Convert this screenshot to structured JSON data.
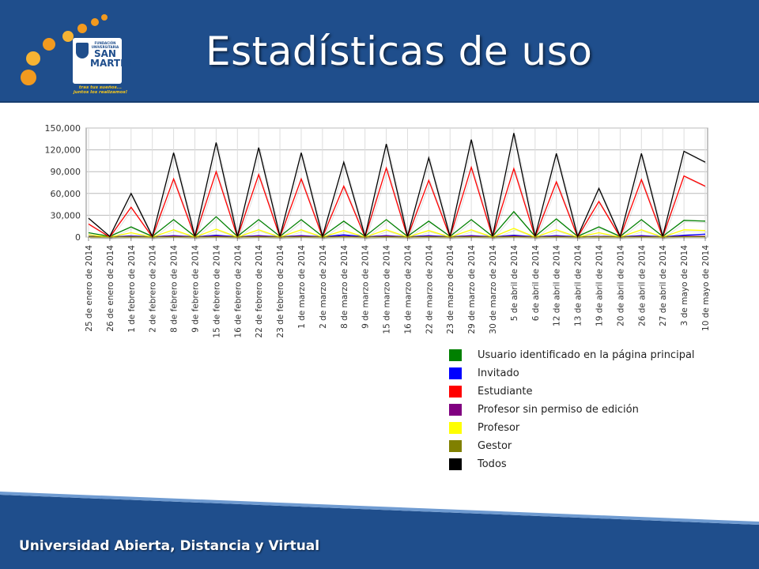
{
  "header": {
    "title": "Estadísticas de uso",
    "logo": {
      "small_text": "FUNDACIÓN UNIVERSITARIA",
      "line1": "SAN",
      "line2": "MARTIN",
      "tagline1": "tras tus sueños...",
      "tagline2": "juntos los realizamos!"
    }
  },
  "footer": {
    "text": "Universidad Abierta, Distancia y Virtual"
  },
  "colors": {
    "header_bg": "#1f4e8c",
    "accent_orange": "#f29a1f"
  },
  "chart_data": {
    "type": "line",
    "categories": [
      "25 de enero de 2014",
      "26 de enero de 2014",
      "1 de febrero de 2014",
      "2 de febrero de 2014",
      "8 de febrero de 2014",
      "9 de febrero de 2014",
      "15 de febrero de 2014",
      "16 de febrero de 2014",
      "22 de febrero de 2014",
      "23 de febrero de 2014",
      "1 de marzo de 2014",
      "2 de marzo de 2014",
      "8 de marzo de 2014",
      "9 de marzo de 2014",
      "15 de marzo de 2014",
      "16 de marzo de 2014",
      "22 de marzo de 2014",
      "23 de marzo de 2014",
      "29 de marzo de 2014",
      "30 de marzo de 2014",
      "5 de abril de 2014",
      "6 de abril de 2014",
      "12 de abril de 2014",
      "13 de abril de 2014",
      "19 de abril de 2014",
      "20 de abril de 2014",
      "26 de abril de 2014",
      "27 de abril de 2014",
      "3 de mayo de 2014",
      "10 de mayo de 2014"
    ],
    "yticks": [
      "0",
      "30,000",
      "60,000",
      "90,000",
      "120,000",
      "150,000"
    ],
    "ylim": [
      0,
      150000
    ],
    "grid": true,
    "legend_position": "bottom-right",
    "series": [
      {
        "name": "Usuario identificado en la página principal",
        "color": "#008000",
        "values": [
          6000,
          1000,
          14000,
          1000,
          24000,
          1000,
          28000,
          1000,
          24000,
          1000,
          24000,
          1000,
          22000,
          1000,
          24000,
          1000,
          22000,
          1000,
          24000,
          1000,
          35000,
          1000,
          25000,
          1000,
          14000,
          1000,
          24000,
          1000,
          23000,
          22000
        ]
      },
      {
        "name": "Invitado",
        "color": "#0000ff",
        "values": [
          1000,
          300,
          1500,
          300,
          2000,
          300,
          2500,
          300,
          2000,
          300,
          2000,
          300,
          3000,
          300,
          2000,
          300,
          2000,
          300,
          2000,
          300,
          2500,
          300,
          2000,
          300,
          1000,
          300,
          2000,
          300,
          2500,
          4000
        ]
      },
      {
        "name": "Estudiante",
        "color": "#ff0000",
        "values": [
          18000,
          0,
          41000,
          0,
          80000,
          0,
          90000,
          0,
          86000,
          0,
          80000,
          0,
          70000,
          0,
          95000,
          0,
          78000,
          0,
          96000,
          0,
          94000,
          0,
          76000,
          0,
          49000,
          0,
          79000,
          0,
          84000,
          70000
        ]
      },
      {
        "name": "Profesor sin permiso de edición",
        "color": "#800080",
        "values": [
          500,
          0,
          1000,
          0,
          1500,
          0,
          1500,
          0,
          1500,
          0,
          1500,
          0,
          1200,
          0,
          1500,
          0,
          1200,
          0,
          1500,
          0,
          1500,
          0,
          1200,
          0,
          800,
          0,
          1200,
          0,
          1200,
          1000
        ]
      },
      {
        "name": "Profesor",
        "color": "#ffff00",
        "values": [
          3000,
          0,
          6000,
          0,
          10000,
          0,
          11000,
          0,
          10000,
          0,
          10000,
          0,
          9000,
          0,
          10000,
          0,
          9000,
          0,
          10000,
          0,
          12000,
          0,
          10000,
          0,
          6000,
          0,
          10000,
          0,
          10000,
          9000
        ]
      },
      {
        "name": "Gestor",
        "color": "#808000",
        "values": [
          200,
          0,
          300,
          0,
          400,
          0,
          400,
          0,
          400,
          0,
          400,
          0,
          400,
          0,
          400,
          0,
          400,
          0,
          400,
          0,
          400,
          0,
          400,
          0,
          300,
          0,
          400,
          0,
          400,
          400
        ]
      },
      {
        "name": "Todos",
        "color": "#000000",
        "values": [
          26000,
          1000,
          60000,
          1000,
          116000,
          1000,
          130000,
          1000,
          123000,
          1000,
          116000,
          1000,
          103000,
          1000,
          128000,
          1000,
          109000,
          1000,
          134000,
          1000,
          143000,
          1000,
          115000,
          1000,
          67000,
          1000,
          115000,
          1000,
          118000,
          103000
        ]
      }
    ]
  }
}
